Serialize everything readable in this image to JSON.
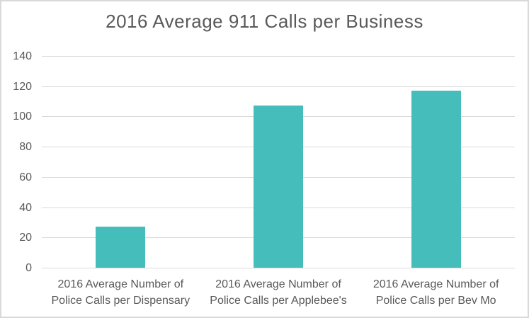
{
  "chart_data": {
    "type": "bar",
    "title": "2016 Average 911 Calls per Business",
    "categories": [
      "2016 Average Number of\nPolice Calls per Dispensary",
      "2016 Average Number of\nPolice Calls per Applebee's",
      "2016 Average Number of\nPolice Calls per Bev Mo"
    ],
    "values": [
      27,
      107,
      117
    ],
    "xlabel": "",
    "ylabel": "",
    "ylim": [
      0,
      140
    ],
    "yticks": [
      0,
      20,
      40,
      60,
      80,
      100,
      120,
      140
    ],
    "grid": true,
    "legend_position": "none",
    "bar_color": "#45bebb",
    "text_color": "#595959",
    "grid_color": "#d9d9d9",
    "border_color": "#d9d9d9",
    "background_color": "#ffffff"
  }
}
